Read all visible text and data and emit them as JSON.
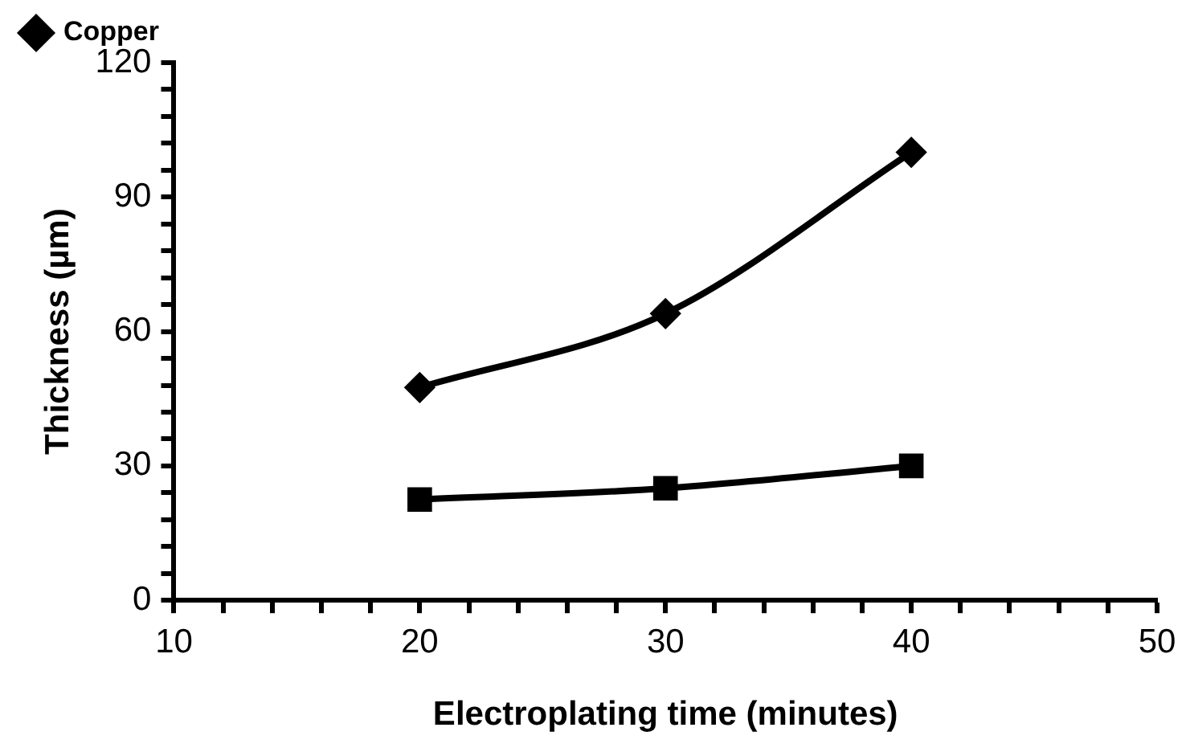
{
  "chart_data": {
    "type": "line",
    "xlabel": "Electroplating time (minutes)",
    "ylabel": "Thickness (µm)",
    "x": [
      20,
      30,
      40
    ],
    "series": [
      {
        "name": "Copper",
        "color": "#000000",
        "marker": "diamond",
        "values": [
          47.5,
          64,
          100
        ]
      },
      {
        "color": "#000000",
        "marker": "square",
        "values": [
          22.5,
          25,
          30
        ]
      }
    ],
    "xlim": [
      10,
      50
    ],
    "xticks": [
      10,
      {
        "value": 12,
        "label": null
      },
      {
        "value": 14,
        "label": null
      },
      {
        "value": 16,
        "label": null
      },
      {
        "value": 18,
        "label": null
      },
      20,
      {
        "value": 22,
        "label": null
      },
      {
        "value": 24,
        "label": null
      },
      {
        "value": 26,
        "label": null
      },
      {
        "value": 28,
        "label": null
      },
      30,
      {
        "value": 32,
        "label": null
      },
      {
        "value": 34,
        "label": null
      },
      {
        "value": 36,
        "label": null
      },
      {
        "value": 38,
        "label": null
      },
      40,
      {
        "value": 42,
        "label": null
      },
      {
        "value": 44,
        "label": null
      },
      {
        "value": 46,
        "label": null
      },
      {
        "value": 48,
        "label": null
      },
      50
    ],
    "ylim": [
      0,
      120
    ],
    "yticks": [
      0,
      {
        "value": 6,
        "label": null
      },
      {
        "value": 12,
        "label": null
      },
      {
        "value": 18,
        "label": null
      },
      {
        "value": 24,
        "label": null
      },
      30,
      {
        "value": 36,
        "label": null
      },
      {
        "value": 42,
        "label": null
      },
      {
        "value": 48,
        "label": null
      },
      {
        "value": 54,
        "label": null
      },
      60,
      {
        "value": 66,
        "label": null
      },
      {
        "value": 72,
        "label": null
      },
      {
        "value": 78,
        "label": null
      },
      {
        "value": 84,
        "label": null
      },
      90,
      {
        "value": 96,
        "label": null
      },
      {
        "value": 102,
        "label": null
      },
      {
        "value": 108,
        "label": null
      },
      {
        "value": 114,
        "label": null
      },
      120
    ],
    "grid": false,
    "legend": "top left",
    "line_style": "solid"
  }
}
